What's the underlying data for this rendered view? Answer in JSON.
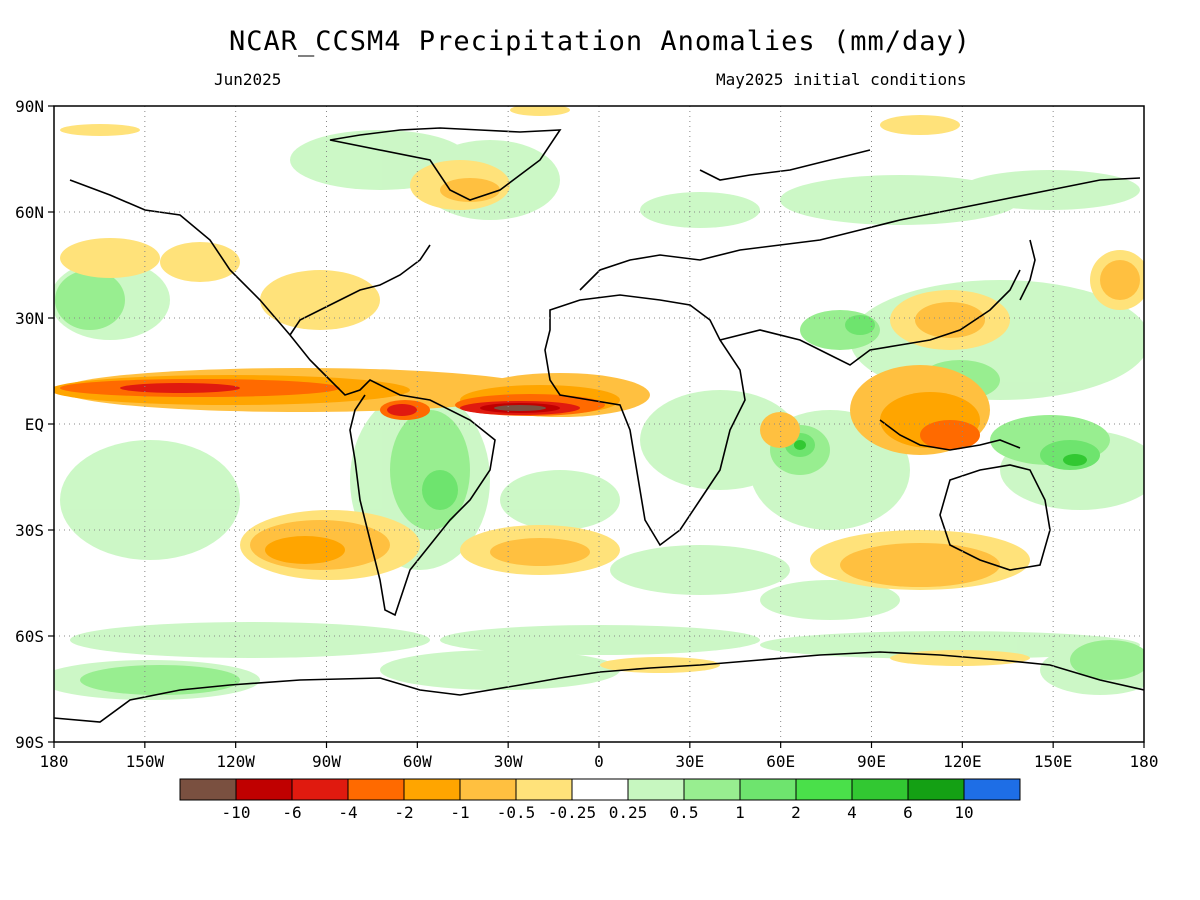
{
  "title": "NCAR_CCSM4 Precipitation Anomalies (mm/day)",
  "subtitle_left": "Jun2025",
  "subtitle_right": "May2025 initial conditions",
  "y_ticks": [
    "90N",
    "60N",
    "30N",
    "EQ",
    "30S",
    "60S",
    "90S"
  ],
  "x_ticks": [
    "180",
    "150W",
    "120W",
    "90W",
    "60W",
    "30W",
    "0",
    "30E",
    "60E",
    "90E",
    "120E",
    "150E",
    "180"
  ],
  "colorbar": {
    "colors": [
      "#7a5040",
      "#c00000",
      "#e01a0f",
      "#ff6a00",
      "#ffa500",
      "#ffc040",
      "#ffe27a",
      "#ffffff",
      "#c7f7c0",
      "#98ee90",
      "#6ee46e",
      "#4ae04a",
      "#32c832",
      "#14a014",
      "#1e6ee6"
    ],
    "labels": [
      "-10",
      "-6",
      "-4",
      "-2",
      "-1",
      "-0.5",
      "-0.25",
      "0.25",
      "0.5",
      "1",
      "2",
      "4",
      "6",
      "10"
    ]
  }
}
